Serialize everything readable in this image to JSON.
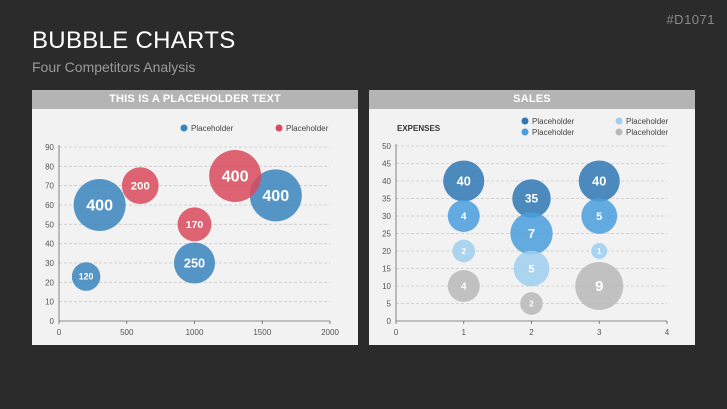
{
  "slide": {
    "id_tag": "#D1071",
    "title": "BUBBLE CHARTS",
    "subtitle": "Four Competitors Analysis"
  },
  "chart_data": [
    {
      "type": "scatter",
      "title": "THIS IS A PLACEHOLDER TEXT",
      "xlim": [
        0,
        2000
      ],
      "ylim": [
        0,
        90
      ],
      "x_ticks": [
        0,
        500,
        1000,
        1500,
        2000
      ],
      "y_ticks": [
        0,
        10,
        20,
        30,
        40,
        50,
        60,
        70,
        80,
        90
      ],
      "grid": true,
      "legend": "top-right",
      "legend_labels": [
        "Placeholder",
        "Placeholder"
      ],
      "series": [
        {
          "color": "#3a85be",
          "points": [
            {
              "x": 300,
              "y": 60,
              "size": 400,
              "label": "400"
            },
            {
              "x": 1000,
              "y": 30,
              "size": 250,
              "label": "250"
            },
            {
              "x": 200,
              "y": 23,
              "size": 120,
              "label": "120"
            },
            {
              "x": 1600,
              "y": 65,
              "size": 400,
              "label": "400"
            }
          ]
        },
        {
          "color": "#d94a5c",
          "points": [
            {
              "x": 600,
              "y": 70,
              "size": 200,
              "label": "200"
            },
            {
              "x": 1000,
              "y": 50,
              "size": 170,
              "label": "170"
            },
            {
              "x": 1300,
              "y": 75,
              "size": 400,
              "label": "400"
            }
          ]
        }
      ]
    },
    {
      "type": "scatter",
      "title": "SALES",
      "ylabel": "EXPENSES",
      "xlim": [
        0,
        4
      ],
      "ylim": [
        0,
        50
      ],
      "x_ticks": [
        0,
        1,
        2,
        3,
        4
      ],
      "y_ticks": [
        0,
        5,
        10,
        15,
        20,
        25,
        30,
        35,
        40,
        45,
        50
      ],
      "grid": true,
      "legend": "top-right",
      "legend_labels": [
        "Placeholder",
        "Placeholder",
        "Placeholder",
        "Placeholder"
      ],
      "series": [
        {
          "color": "#2f78b4",
          "points": [
            {
              "x": 1,
              "y": 40,
              "size": 40,
              "label": "40"
            },
            {
              "x": 2,
              "y": 35,
              "size": 35,
              "label": "35"
            },
            {
              "x": 3,
              "y": 40,
              "size": 40,
              "label": "40"
            }
          ]
        },
        {
          "color": "#4a9ede",
          "points": [
            {
              "x": 1,
              "y": 30,
              "size": 4,
              "label": "4"
            },
            {
              "x": 2,
              "y": 25,
              "size": 7,
              "label": "7"
            },
            {
              "x": 3,
              "y": 30,
              "size": 5,
              "label": "5"
            }
          ]
        },
        {
          "color": "#9fcff0",
          "points": [
            {
              "x": 1,
              "y": 20,
              "size": 2,
              "label": "2"
            },
            {
              "x": 2,
              "y": 15,
              "size": 5,
              "label": "5"
            },
            {
              "x": 3,
              "y": 20,
              "size": 1,
              "label": "1"
            }
          ]
        },
        {
          "color": "#b9b9b9",
          "points": [
            {
              "x": 1,
              "y": 10,
              "size": 4,
              "label": "4"
            },
            {
              "x": 2,
              "y": 5,
              "size": 2,
              "label": "2"
            },
            {
              "x": 3,
              "y": 10,
              "size": 9,
              "label": "9"
            }
          ]
        }
      ]
    }
  ]
}
